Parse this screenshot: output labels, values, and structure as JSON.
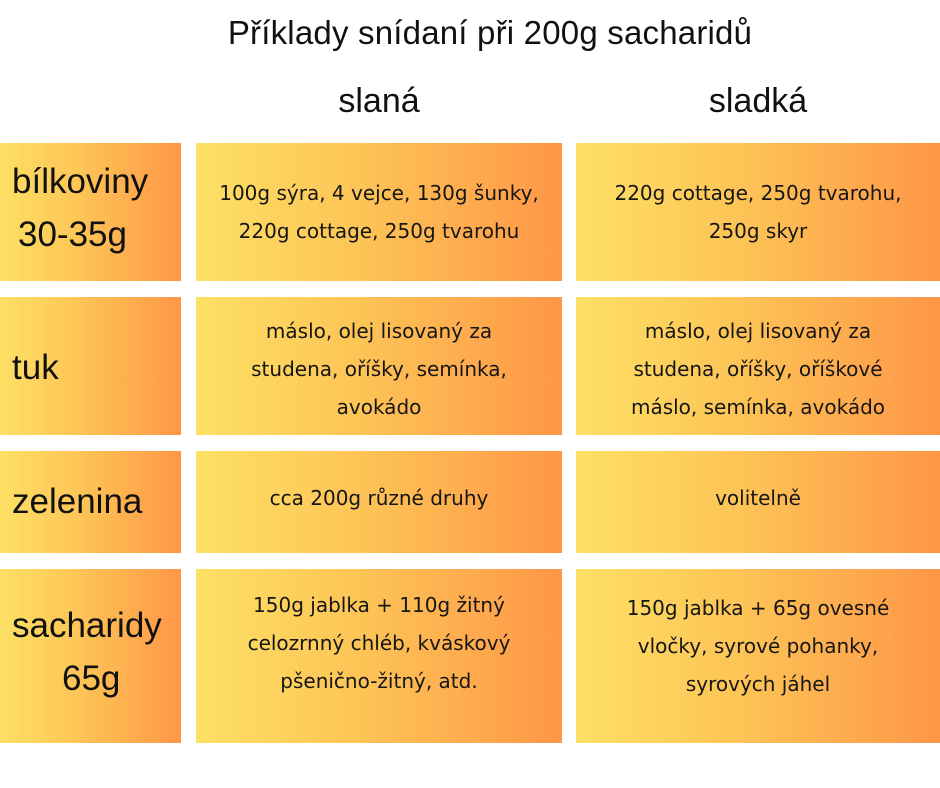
{
  "title": "Příklady snídaní při 200g sacharidů",
  "columns": [
    "slaná",
    "sladká"
  ],
  "rows": [
    {
      "label": [
        "bílkoviny",
        "30-35g"
      ],
      "salty": [
        "100g sýra, 4 vejce, 130g šunky,",
        "220g cottage, 250g tvarohu"
      ],
      "sweet": [
        "220g cottage, 250g tvarohu,",
        "250g skyr"
      ]
    },
    {
      "label": [
        "tuk",
        ""
      ],
      "salty": [
        "máslo, olej lisovaný za",
        "studena, oříšky, semínka,",
        "avokádo"
      ],
      "sweet": [
        "máslo, olej lisovaný za",
        "studena, oříšky, oříškové",
        "máslo, semínka, avokádo"
      ]
    },
    {
      "label": [
        "zelenina",
        ""
      ],
      "salty": [
        "cca 200g různé druhy"
      ],
      "sweet": [
        "volitelně"
      ]
    },
    {
      "label": [
        "sacharidy",
        "65g"
      ],
      "salty": [
        "150g jablka + 110g žitný",
        "celozrnný chléb, kváskový",
        "pšenično-žitný, atd."
      ],
      "sweet": [
        "150g jablka + 65g ovesné",
        "vločky, syrové pohanky,",
        "syrových jáhel"
      ]
    }
  ],
  "colors": {
    "gradient_start": "#fde065",
    "gradient_mid": "#fdc456",
    "gradient_end": "#fe9647",
    "text": "#111111",
    "background": "#ffffff"
  }
}
